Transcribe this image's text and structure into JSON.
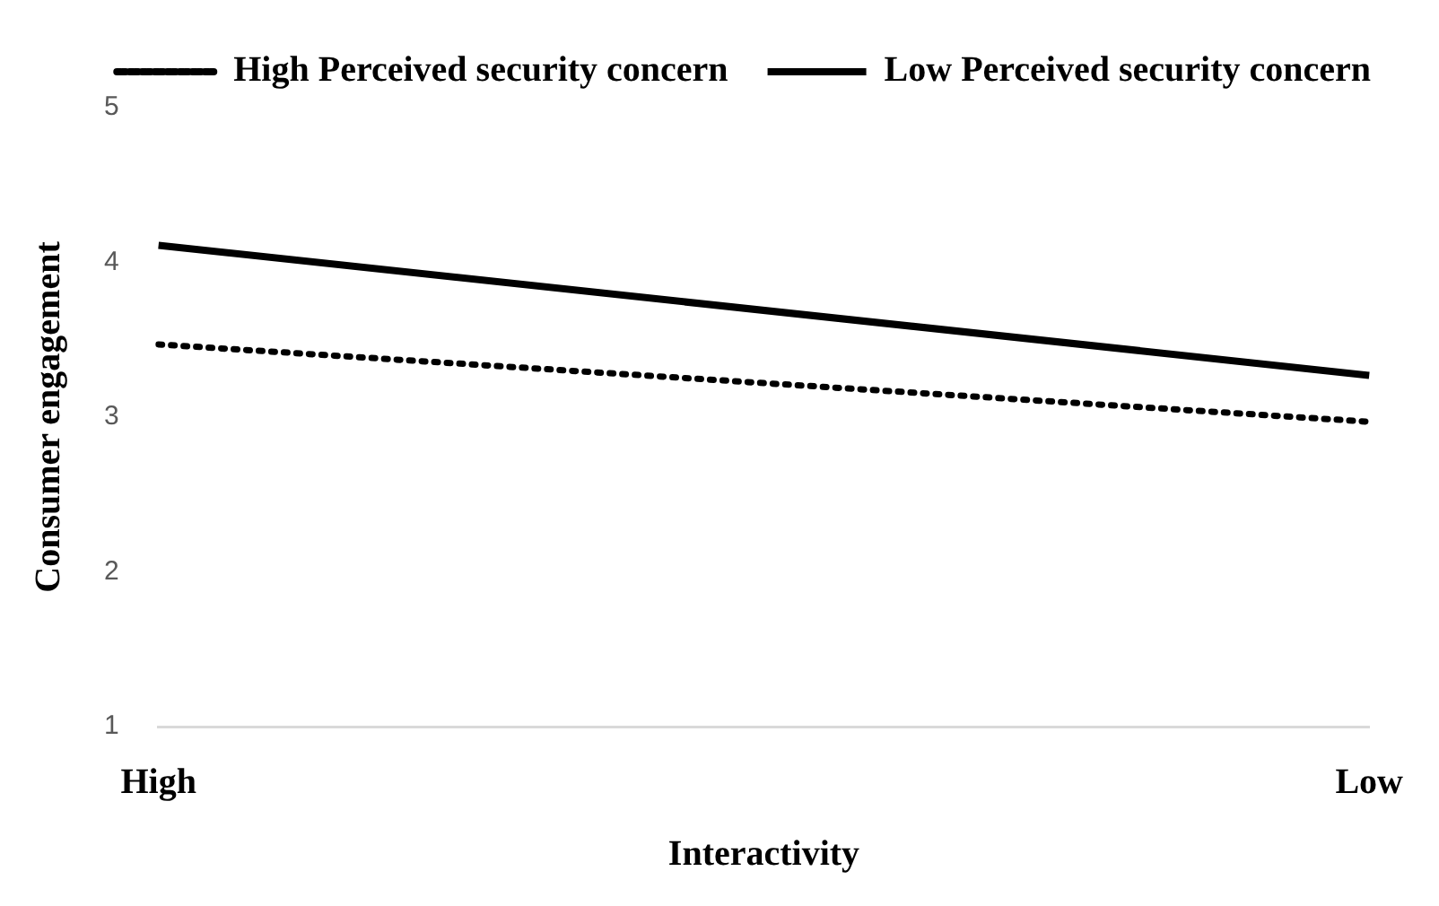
{
  "chart_data": {
    "type": "line",
    "xlabel": "Interactivity",
    "ylabel": "Consumer engagement",
    "categories": [
      "High",
      "Low"
    ],
    "series": [
      {
        "name": "High Perceived security concern",
        "color": "#000000",
        "values": [
          3.47,
          2.97
        ],
        "line_style": "dotted"
      },
      {
        "name": "Low Perceived security concern",
        "color": "#000000",
        "values": [
          4.11,
          3.27
        ],
        "line_style": "solid"
      }
    ],
    "ylim": [
      1,
      5
    ],
    "yticks": [
      1,
      2,
      3,
      4,
      5
    ],
    "grid": false,
    "legend": "top right",
    "marker": "none"
  }
}
